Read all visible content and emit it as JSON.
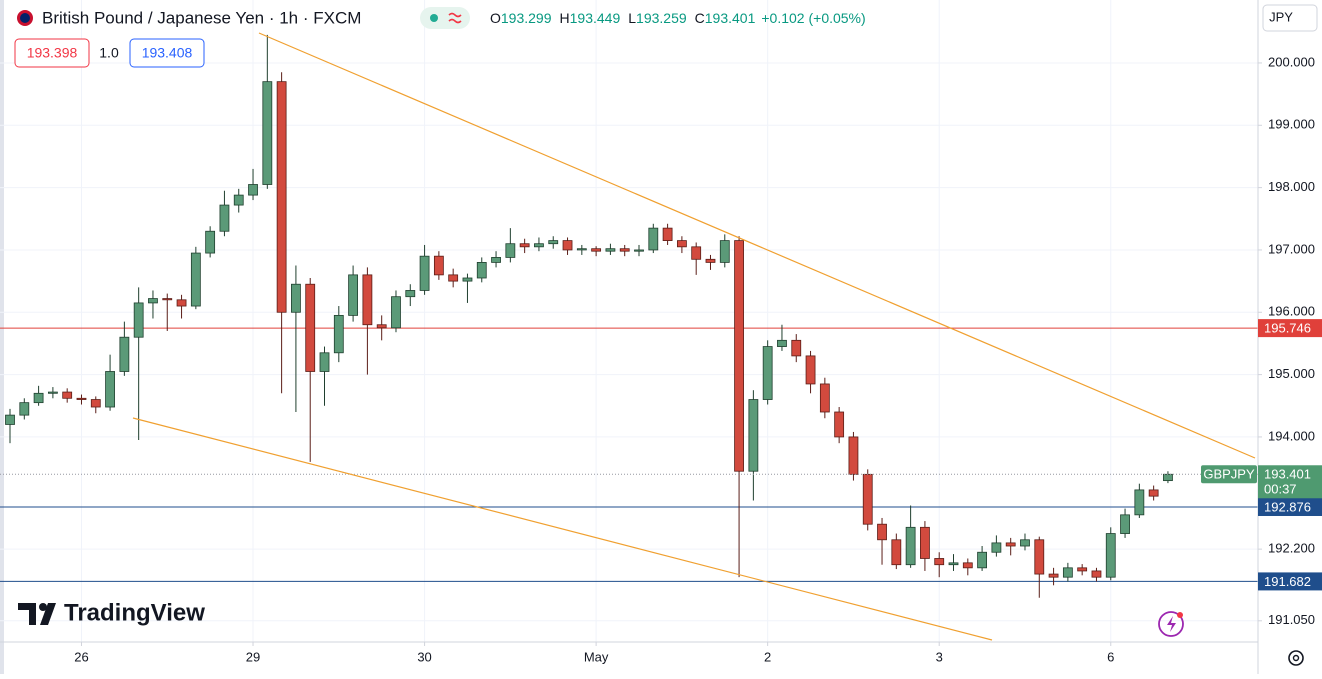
{
  "header": {
    "title": "British Pound / Japanese Yen · 1h · FXCM",
    "ohlc": [
      {
        "label": "O",
        "value": 193.299
      },
      {
        "label": "H",
        "value": 193.449
      },
      {
        "label": "L",
        "value": 193.259
      },
      {
        "label": "C",
        "value": 193.401
      }
    ],
    "change": "+0.102 (+0.05%)",
    "bid": "193.398",
    "spread": "1.0",
    "ask": "193.408",
    "currency": "JPY",
    "brand": "TradingView"
  },
  "chart_data": {
    "type": "candlestick",
    "up_color": "#5b9a78",
    "up_border": "#1f3f2e",
    "down_color": "#d24a3e",
    "down_border": "#5a1d17",
    "grid": true,
    "xlim": [
      -0.7,
      87.3
    ],
    "ylim": [
      190.71,
      201.01
    ],
    "xticks": [
      {
        "value": 5,
        "label": "26"
      },
      {
        "value": 17,
        "label": "29"
      },
      {
        "value": 29,
        "label": "30"
      },
      {
        "value": 41,
        "label": "May"
      },
      {
        "value": 53,
        "label": "2"
      },
      {
        "value": 65,
        "label": "3"
      },
      {
        "value": 77,
        "label": "6"
      }
    ],
    "yticks": [
      {
        "value": 200,
        "label": "200.000"
      },
      {
        "value": 199,
        "label": "199.000"
      },
      {
        "value": 198,
        "label": "198.000"
      },
      {
        "value": 197,
        "label": "197.000"
      },
      {
        "value": 196,
        "label": "196.000"
      },
      {
        "value": 195,
        "label": "195.000"
      },
      {
        "value": 194,
        "label": "194.000"
      },
      {
        "value": 192.2,
        "label": "192.200"
      },
      {
        "value": 191.05,
        "label": "191.050"
      }
    ],
    "price_lines": [
      {
        "value": 195.746,
        "color": "#e0403a"
      },
      {
        "value": 192.876,
        "color": "#1f4e8c"
      },
      {
        "value": 191.682,
        "color": "#1f4e8c"
      }
    ],
    "current_price": {
      "symbol": "GBPJPY",
      "value": 193.401,
      "countdown": "00:37",
      "color": "#4f9a70"
    },
    "open": [
      194.2,
      194.35,
      194.55,
      194.7,
      194.72,
      194.62,
      194.6,
      194.48,
      195.05,
      195.6,
      196.15,
      196.22,
      196.2,
      196.1,
      196.95,
      197.3,
      197.72,
      197.88,
      198.05,
      199.7,
      196.0,
      196.45,
      195.05,
      195.35,
      195.95,
      196.6,
      195.8,
      195.75,
      196.25,
      196.35,
      196.9,
      196.6,
      196.5,
      196.55,
      196.8,
      196.88,
      197.1,
      197.05,
      197.1,
      197.15,
      197.0,
      197.02,
      196.98,
      197.02,
      196.98,
      197.0,
      197.35,
      197.15,
      197.05,
      196.85,
      196.8,
      197.15,
      193.45,
      194.6,
      195.45,
      195.55,
      195.3,
      194.85,
      194.4,
      194.0,
      193.4,
      192.6,
      192.35,
      191.95,
      192.55,
      192.05,
      191.95,
      191.98,
      191.9,
      192.15,
      192.3,
      192.25,
      192.35,
      191.8,
      191.75,
      191.9,
      191.85,
      191.75,
      192.45,
      192.75,
      193.15,
      193.299
    ],
    "high": [
      194.45,
      194.62,
      194.82,
      194.8,
      194.78,
      194.68,
      194.65,
      195.32,
      195.85,
      196.4,
      196.35,
      196.3,
      196.28,
      197.05,
      197.38,
      197.95,
      197.98,
      198.3,
      200.45,
      199.85,
      196.75,
      196.55,
      195.45,
      196.1,
      196.75,
      196.72,
      195.95,
      196.35,
      196.45,
      197.08,
      196.98,
      196.7,
      196.62,
      196.88,
      196.98,
      197.35,
      197.18,
      197.2,
      197.22,
      197.2,
      197.08,
      197.06,
      197.1,
      197.08,
      197.08,
      197.42,
      197.42,
      197.22,
      197.12,
      196.92,
      197.25,
      197.22,
      194.75,
      195.55,
      195.8,
      195.65,
      195.38,
      194.95,
      194.48,
      194.08,
      193.48,
      192.7,
      192.45,
      192.9,
      192.65,
      192.15,
      192.12,
      192.05,
      192.25,
      192.42,
      192.38,
      192.45,
      192.4,
      191.9,
      191.98,
      191.96,
      191.9,
      192.55,
      192.85,
      193.25,
      193.22,
      193.449
    ],
    "low": [
      193.9,
      194.28,
      194.5,
      194.62,
      194.55,
      194.52,
      194.38,
      194.42,
      194.98,
      193.95,
      195.9,
      195.7,
      195.9,
      196.05,
      196.88,
      197.22,
      197.6,
      197.8,
      197.98,
      194.7,
      194.4,
      193.6,
      194.5,
      195.2,
      195.85,
      195.0,
      195.55,
      195.68,
      196.1,
      196.28,
      196.52,
      196.4,
      196.15,
      196.48,
      196.72,
      196.8,
      196.95,
      196.98,
      197.02,
      196.92,
      196.92,
      196.9,
      196.92,
      196.9,
      196.9,
      196.95,
      197.08,
      196.95,
      196.6,
      196.68,
      196.72,
      191.75,
      192.98,
      194.52,
      195.38,
      195.2,
      194.7,
      194.3,
      193.9,
      193.3,
      192.5,
      191.95,
      191.88,
      191.9,
      191.85,
      191.75,
      191.85,
      191.78,
      191.85,
      192.08,
      192.1,
      192.18,
      191.42,
      191.62,
      191.68,
      191.78,
      191.68,
      191.7,
      192.38,
      192.7,
      192.98,
      193.259
    ],
    "close": [
      194.35,
      194.55,
      194.7,
      194.72,
      194.62,
      194.6,
      194.48,
      195.05,
      195.6,
      196.15,
      196.22,
      196.2,
      196.1,
      196.95,
      197.3,
      197.72,
      197.88,
      198.05,
      199.7,
      196.0,
      196.45,
      195.05,
      195.35,
      195.95,
      196.6,
      195.8,
      195.75,
      196.25,
      196.35,
      196.9,
      196.6,
      196.5,
      196.55,
      196.8,
      196.88,
      197.1,
      197.05,
      197.1,
      197.15,
      197.0,
      197.02,
      196.98,
      197.02,
      196.98,
      197.0,
      197.35,
      197.15,
      197.05,
      196.85,
      196.8,
      197.15,
      193.45,
      194.6,
      195.45,
      195.55,
      195.3,
      194.85,
      194.4,
      194.0,
      193.4,
      192.6,
      192.35,
      191.95,
      192.55,
      192.05,
      191.95,
      191.98,
      191.9,
      192.15,
      192.3,
      192.25,
      192.35,
      191.8,
      191.75,
      191.9,
      191.85,
      191.75,
      192.45,
      192.75,
      193.15,
      193.05,
      193.401
    ]
  }
}
